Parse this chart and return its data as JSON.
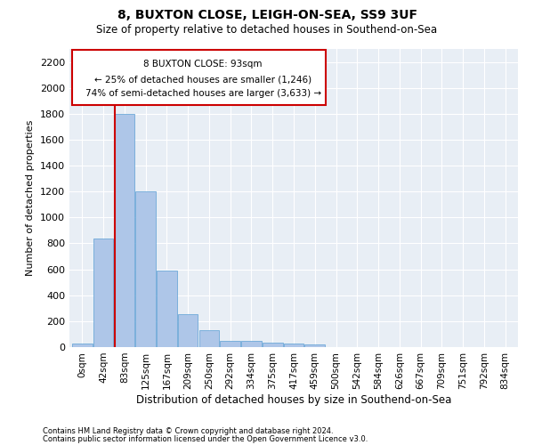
{
  "title1": "8, BUXTON CLOSE, LEIGH-ON-SEA, SS9 3UF",
  "title2": "Size of property relative to detached houses in Southend-on-Sea",
  "xlabel": "Distribution of detached houses by size in Southend-on-Sea",
  "ylabel": "Number of detached properties",
  "footnote1": "Contains HM Land Registry data © Crown copyright and database right 2024.",
  "footnote2": "Contains public sector information licensed under the Open Government Licence v3.0.",
  "annotation_line1": "8 BUXTON CLOSE: 93sqm",
  "annotation_line2": "← 25% of detached houses are smaller (1,246)",
  "annotation_line3": "74% of semi-detached houses are larger (3,633) →",
  "bar_color": "#aec6e8",
  "bar_edge_color": "#5a9fd4",
  "redline_color": "#cc0000",
  "background_color": "#e8eef5",
  "categories": [
    "0sqm",
    "42sqm",
    "83sqm",
    "125sqm",
    "167sqm",
    "209sqm",
    "250sqm",
    "292sqm",
    "334sqm",
    "375sqm",
    "417sqm",
    "459sqm",
    "500sqm",
    "542sqm",
    "584sqm",
    "626sqm",
    "667sqm",
    "709sqm",
    "751sqm",
    "792sqm",
    "834sqm"
  ],
  "values": [
    25,
    840,
    1800,
    1200,
    590,
    255,
    130,
    45,
    45,
    35,
    30,
    20,
    0,
    0,
    0,
    0,
    0,
    0,
    0,
    0,
    0
  ],
  "ylim": [
    0,
    2300
  ],
  "yticks": [
    0,
    200,
    400,
    600,
    800,
    1000,
    1200,
    1400,
    1600,
    1800,
    2000,
    2200
  ]
}
